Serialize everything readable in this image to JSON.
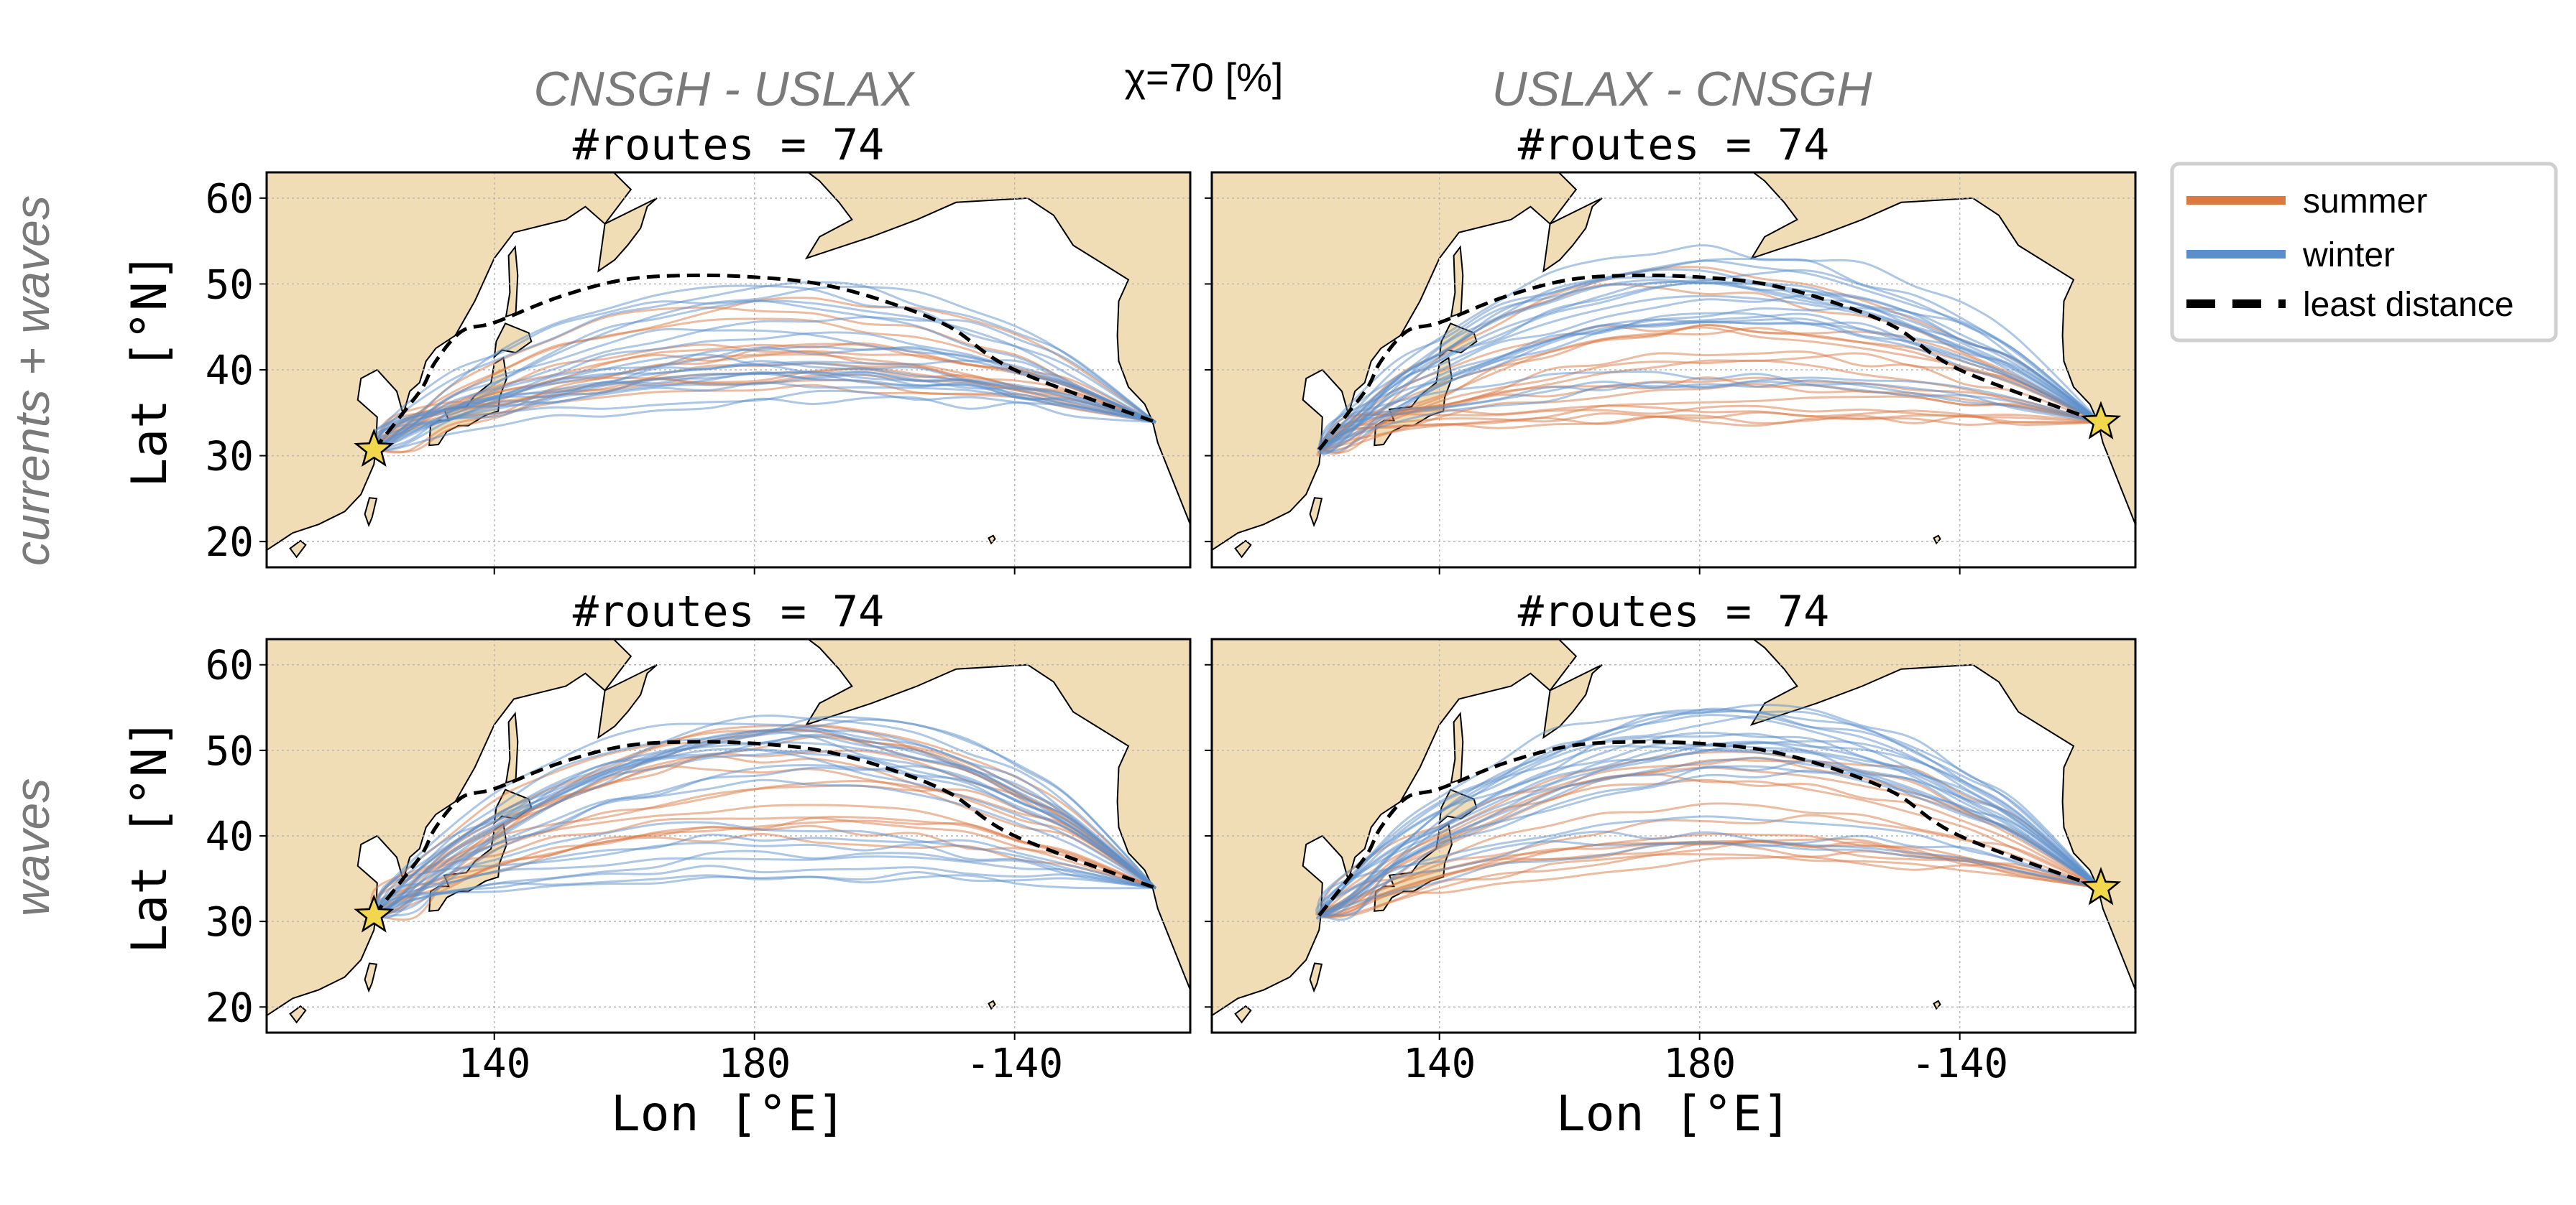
{
  "figure": {
    "chi_label": "χ=70 [%]",
    "row_labels": [
      "currents + waves",
      "waves"
    ],
    "col_titles": [
      "CNSGH - USLAX",
      "USLAX - CNSGH"
    ],
    "colors": {
      "summer": "#d97a45",
      "winter": "#5b8fcc",
      "least_distance": "#000000",
      "land": "#f0ddb5",
      "star": "#f2d64b",
      "muted_text": "#7a7a7a"
    },
    "legend": {
      "entries": [
        {
          "label": "summer",
          "style": "summer"
        },
        {
          "label": "winter",
          "style": "winter"
        },
        {
          "label": "least distance",
          "style": "least_distance"
        }
      ]
    }
  },
  "chart_data": [
    {
      "type": "line",
      "row_label": "currents + waves",
      "col_title": "CNSGH - USLAX",
      "title": "#routes = 74",
      "xlabel": "",
      "ylabel": "Lat [°N]",
      "xticks": [
        "140",
        "180",
        "-140"
      ],
      "yticks": [
        "20",
        "30",
        "40",
        "50",
        "60"
      ],
      "ylim": [
        17,
        63
      ],
      "grid": true,
      "origin_star": [
        121.5,
        30.7
      ],
      "least_distance": [
        [
          121.5,
          30.7
        ],
        [
          126,
          35
        ],
        [
          129,
          38
        ],
        [
          131,
          41
        ],
        [
          135,
          44.5
        ],
        [
          140,
          45.5
        ],
        [
          150,
          48.5
        ],
        [
          160,
          50.5
        ],
        [
          170,
          51
        ],
        [
          180,
          50.8
        ],
        [
          190,
          50
        ],
        [
          200,
          48
        ],
        [
          210,
          45
        ],
        [
          220,
          40
        ],
        [
          241.7,
          33.9
        ]
      ],
      "series": [
        {
          "name": "summer",
          "values": "routes mostly 38–48 °N"
        },
        {
          "name": "winter",
          "values": "routes mostly 35–50 °N"
        }
      ]
    },
    {
      "type": "line",
      "row_label": "currents + waves",
      "col_title": "USLAX - CNSGH",
      "title": "#routes = 74",
      "xlabel": "",
      "ylabel": "",
      "xticks": [
        "140",
        "180",
        "-140"
      ],
      "yticks": [],
      "ylim": [
        17,
        63
      ],
      "grid": true,
      "origin_star": [
        241.7,
        33.9
      ],
      "least_distance": [
        [
          121.5,
          30.7
        ],
        [
          126,
          35
        ],
        [
          129,
          38
        ],
        [
          131,
          41
        ],
        [
          135,
          44.5
        ],
        [
          140,
          45.5
        ],
        [
          150,
          48.5
        ],
        [
          160,
          50.5
        ],
        [
          170,
          51
        ],
        [
          180,
          50.8
        ],
        [
          190,
          50
        ],
        [
          200,
          48
        ],
        [
          210,
          45
        ],
        [
          220,
          40
        ],
        [
          241.7,
          33.9
        ]
      ],
      "series": [
        {
          "name": "summer",
          "values": "routes 35–52 °N"
        },
        {
          "name": "winter",
          "values": "routes 45–55 °N"
        }
      ]
    },
    {
      "type": "line",
      "row_label": "waves",
      "col_title": "CNSGH - USLAX",
      "title": "#routes = 74",
      "xlabel": "Lon [°E]",
      "ylabel": "Lat [°N]",
      "xticks": [
        "140",
        "180",
        "-140"
      ],
      "yticks": [
        "20",
        "30",
        "40",
        "50",
        "60"
      ],
      "ylim": [
        17,
        63
      ],
      "grid": true,
      "origin_star": [
        121.5,
        30.7
      ],
      "least_distance": [
        [
          121.5,
          30.7
        ],
        [
          126,
          35
        ],
        [
          129,
          38
        ],
        [
          131,
          41
        ],
        [
          135,
          44.5
        ],
        [
          140,
          45.5
        ],
        [
          150,
          48.5
        ],
        [
          160,
          50.5
        ],
        [
          170,
          51
        ],
        [
          180,
          50.8
        ],
        [
          190,
          50
        ],
        [
          200,
          48
        ],
        [
          210,
          45
        ],
        [
          220,
          40
        ],
        [
          241.7,
          33.9
        ]
      ],
      "series": [
        {
          "name": "summer",
          "values": "routes 38–53 °N"
        },
        {
          "name": "winter",
          "values": "routes 35–54 °N"
        }
      ]
    },
    {
      "type": "line",
      "row_label": "waves",
      "col_title": "USLAX - CNSGH",
      "title": "#routes = 74",
      "xlabel": "Lon [°E]",
      "ylabel": "",
      "xticks": [
        "140",
        "180",
        "-140"
      ],
      "yticks": [],
      "ylim": [
        17,
        63
      ],
      "grid": true,
      "origin_star": [
        241.7,
        33.9
      ],
      "least_distance": [
        [
          121.5,
          30.7
        ],
        [
          126,
          35
        ],
        [
          129,
          38
        ],
        [
          131,
          41
        ],
        [
          135,
          44.5
        ],
        [
          140,
          45.5
        ],
        [
          150,
          48.5
        ],
        [
          160,
          50.5
        ],
        [
          170,
          51
        ],
        [
          180,
          50.8
        ],
        [
          190,
          50
        ],
        [
          200,
          48
        ],
        [
          210,
          45
        ],
        [
          220,
          40
        ],
        [
          241.7,
          33.9
        ]
      ],
      "series": [
        {
          "name": "summer",
          "values": "routes 37–52 °N"
        },
        {
          "name": "winter",
          "values": "routes 45–56 °N"
        }
      ]
    }
  ]
}
